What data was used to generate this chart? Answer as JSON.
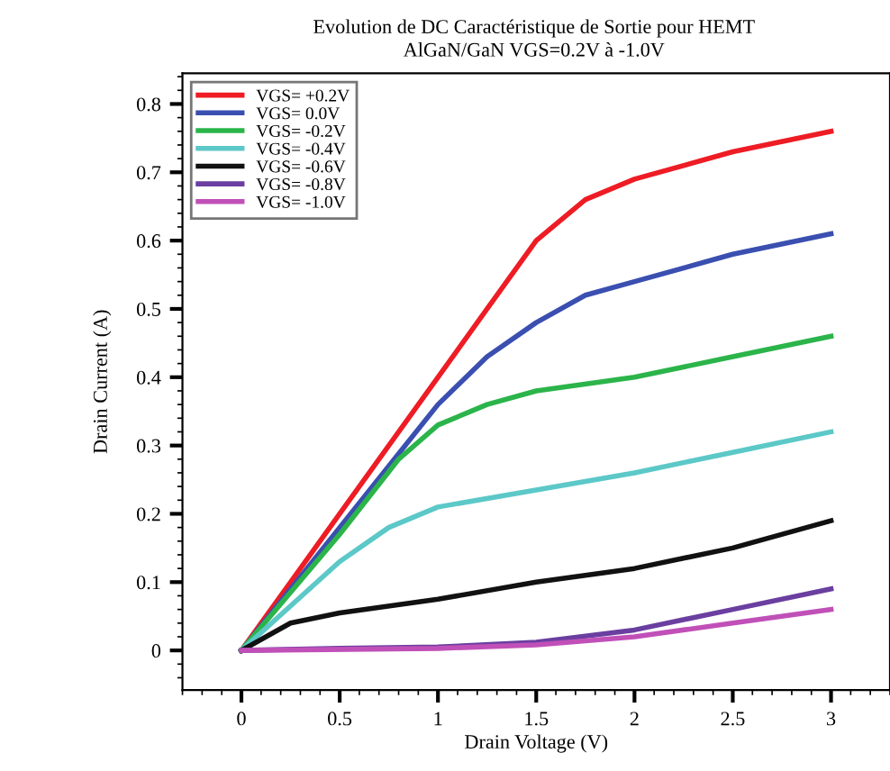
{
  "chart_data": {
    "type": "line",
    "title": "Evolution de DC Caractéristique de Sortie pour HEMT",
    "subtitle": "AlGaN/GaN VGS=0.2V à -1.0V",
    "xlabel": "Drain Voltage (V)",
    "ylabel": "Drain Current (A)",
    "xlim": [
      -0.3,
      3.3
    ],
    "ylim": [
      -0.058,
      0.845
    ],
    "xticks": [
      0,
      0.5,
      1,
      1.5,
      2,
      2.5,
      3
    ],
    "yticks": [
      0,
      0.1,
      0.2,
      0.3,
      0.4,
      0.5,
      0.6,
      0.7,
      0.8
    ],
    "grid": false,
    "legend": "top left",
    "marker": "none",
    "line_style": "solid",
    "series": [
      {
        "name": "VGS= +0.2V",
        "color": "#ee1c24",
        "x": [
          0,
          0.25,
          0.5,
          0.75,
          1,
          1.25,
          1.5,
          1.75,
          2,
          2.5,
          3
        ],
        "values": [
          0,
          0.1,
          0.2,
          0.3,
          0.4,
          0.5,
          0.6,
          0.66,
          0.69,
          0.73,
          0.76
        ]
      },
      {
        "name": "VGS= 0.0V",
        "color": "#3a4fb0",
        "x": [
          0,
          0.5,
          1,
          1.25,
          1.5,
          1.75,
          2,
          2.5,
          3
        ],
        "values": [
          0,
          0.18,
          0.36,
          0.43,
          0.48,
          0.52,
          0.54,
          0.58,
          0.61
        ]
      },
      {
        "name": "VGS= -0.2V",
        "color": "#2bb44a",
        "x": [
          0,
          0.5,
          0.8,
          1,
          1.25,
          1.5,
          2,
          2.5,
          3
        ],
        "values": [
          0,
          0.17,
          0.28,
          0.33,
          0.36,
          0.38,
          0.4,
          0.43,
          0.46
        ]
      },
      {
        "name": "VGS= -0.4V",
        "color": "#5cc8c8",
        "x": [
          0,
          0.5,
          0.75,
          1,
          1.5,
          2,
          2.5,
          3
        ],
        "values": [
          0,
          0.13,
          0.18,
          0.21,
          0.235,
          0.26,
          0.29,
          0.32
        ]
      },
      {
        "name": "VGS= -0.6V",
        "color": "#111111",
        "x": [
          0,
          0.25,
          0.5,
          1,
          1.5,
          2,
          2.5,
          3
        ],
        "values": [
          0,
          0.04,
          0.055,
          0.075,
          0.1,
          0.12,
          0.15,
          0.19
        ]
      },
      {
        "name": "VGS= -0.8V",
        "color": "#6a3fa0",
        "x": [
          0,
          0.5,
          1,
          1.5,
          2,
          2.5,
          3
        ],
        "values": [
          0,
          0.003,
          0.005,
          0.012,
          0.03,
          0.06,
          0.09
        ]
      },
      {
        "name": "VGS= -1.0V",
        "color": "#c050b8",
        "x": [
          0,
          1,
          1.5,
          2,
          2.5,
          3
        ],
        "values": [
          0,
          0.003,
          0.008,
          0.02,
          0.04,
          0.06
        ]
      }
    ]
  }
}
